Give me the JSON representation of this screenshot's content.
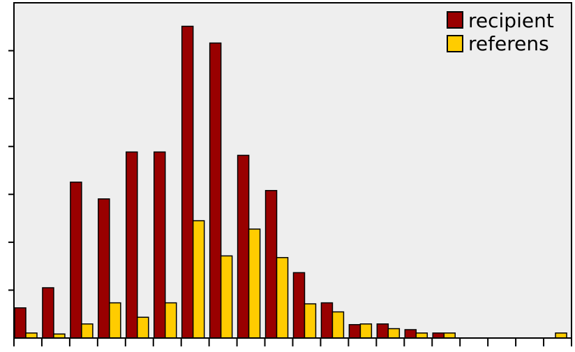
{
  "chart_data": {
    "type": "bar",
    "title": "",
    "xlabel": "",
    "ylabel": "",
    "ylim": [
      0,
      100
    ],
    "grid": false,
    "legend_position": "top-right",
    "categories": [
      "",
      "",
      "",
      "",
      "",
      "",
      "",
      "",
      "",
      "",
      "",
      "",
      "",
      "",
      "",
      "",
      "",
      "",
      "",
      ""
    ],
    "series": [
      {
        "name": "recipient",
        "color": "#990000",
        "values": [
          9,
          15,
          46.5,
          41.5,
          55.5,
          55.5,
          93,
          88,
          54.5,
          44,
          19.5,
          10.5,
          4,
          4.2,
          2.5,
          1.5,
          0,
          0,
          0,
          0
        ]
      },
      {
        "name": "referens",
        "color": "#FFCC00",
        "values": [
          1.5,
          1.2,
          4.2,
          10.5,
          6.2,
          10.5,
          35,
          24.5,
          32.5,
          24,
          10.2,
          7.8,
          4.2,
          2.8,
          1.5,
          1.5,
          0,
          0,
          0,
          1.5
        ]
      }
    ]
  }
}
